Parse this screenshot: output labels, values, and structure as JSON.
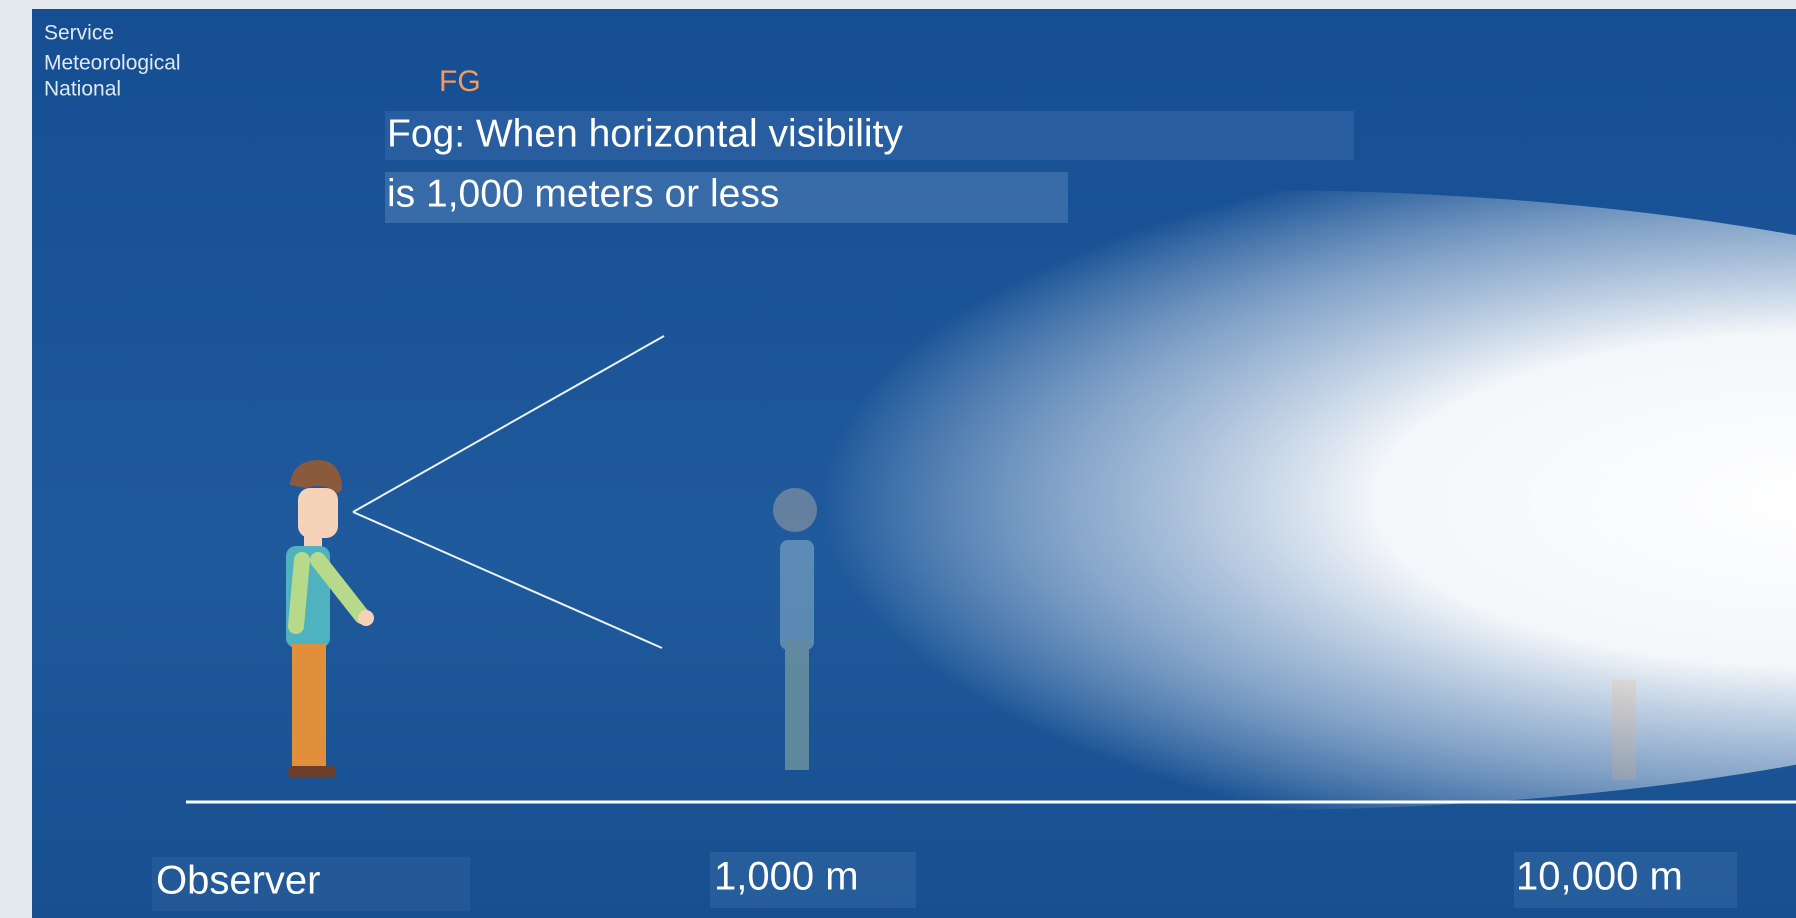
{
  "logo": {
    "lines": [
      "Service",
      "Meteorological",
      "National"
    ]
  },
  "code": "FG",
  "definition": {
    "lines": [
      "Fog: When horizontal visibility",
      "is 1,000 meters or less"
    ]
  },
  "labels": {
    "observer": "Observer",
    "near": "1,000 m",
    "far": "10,000 m"
  }
}
